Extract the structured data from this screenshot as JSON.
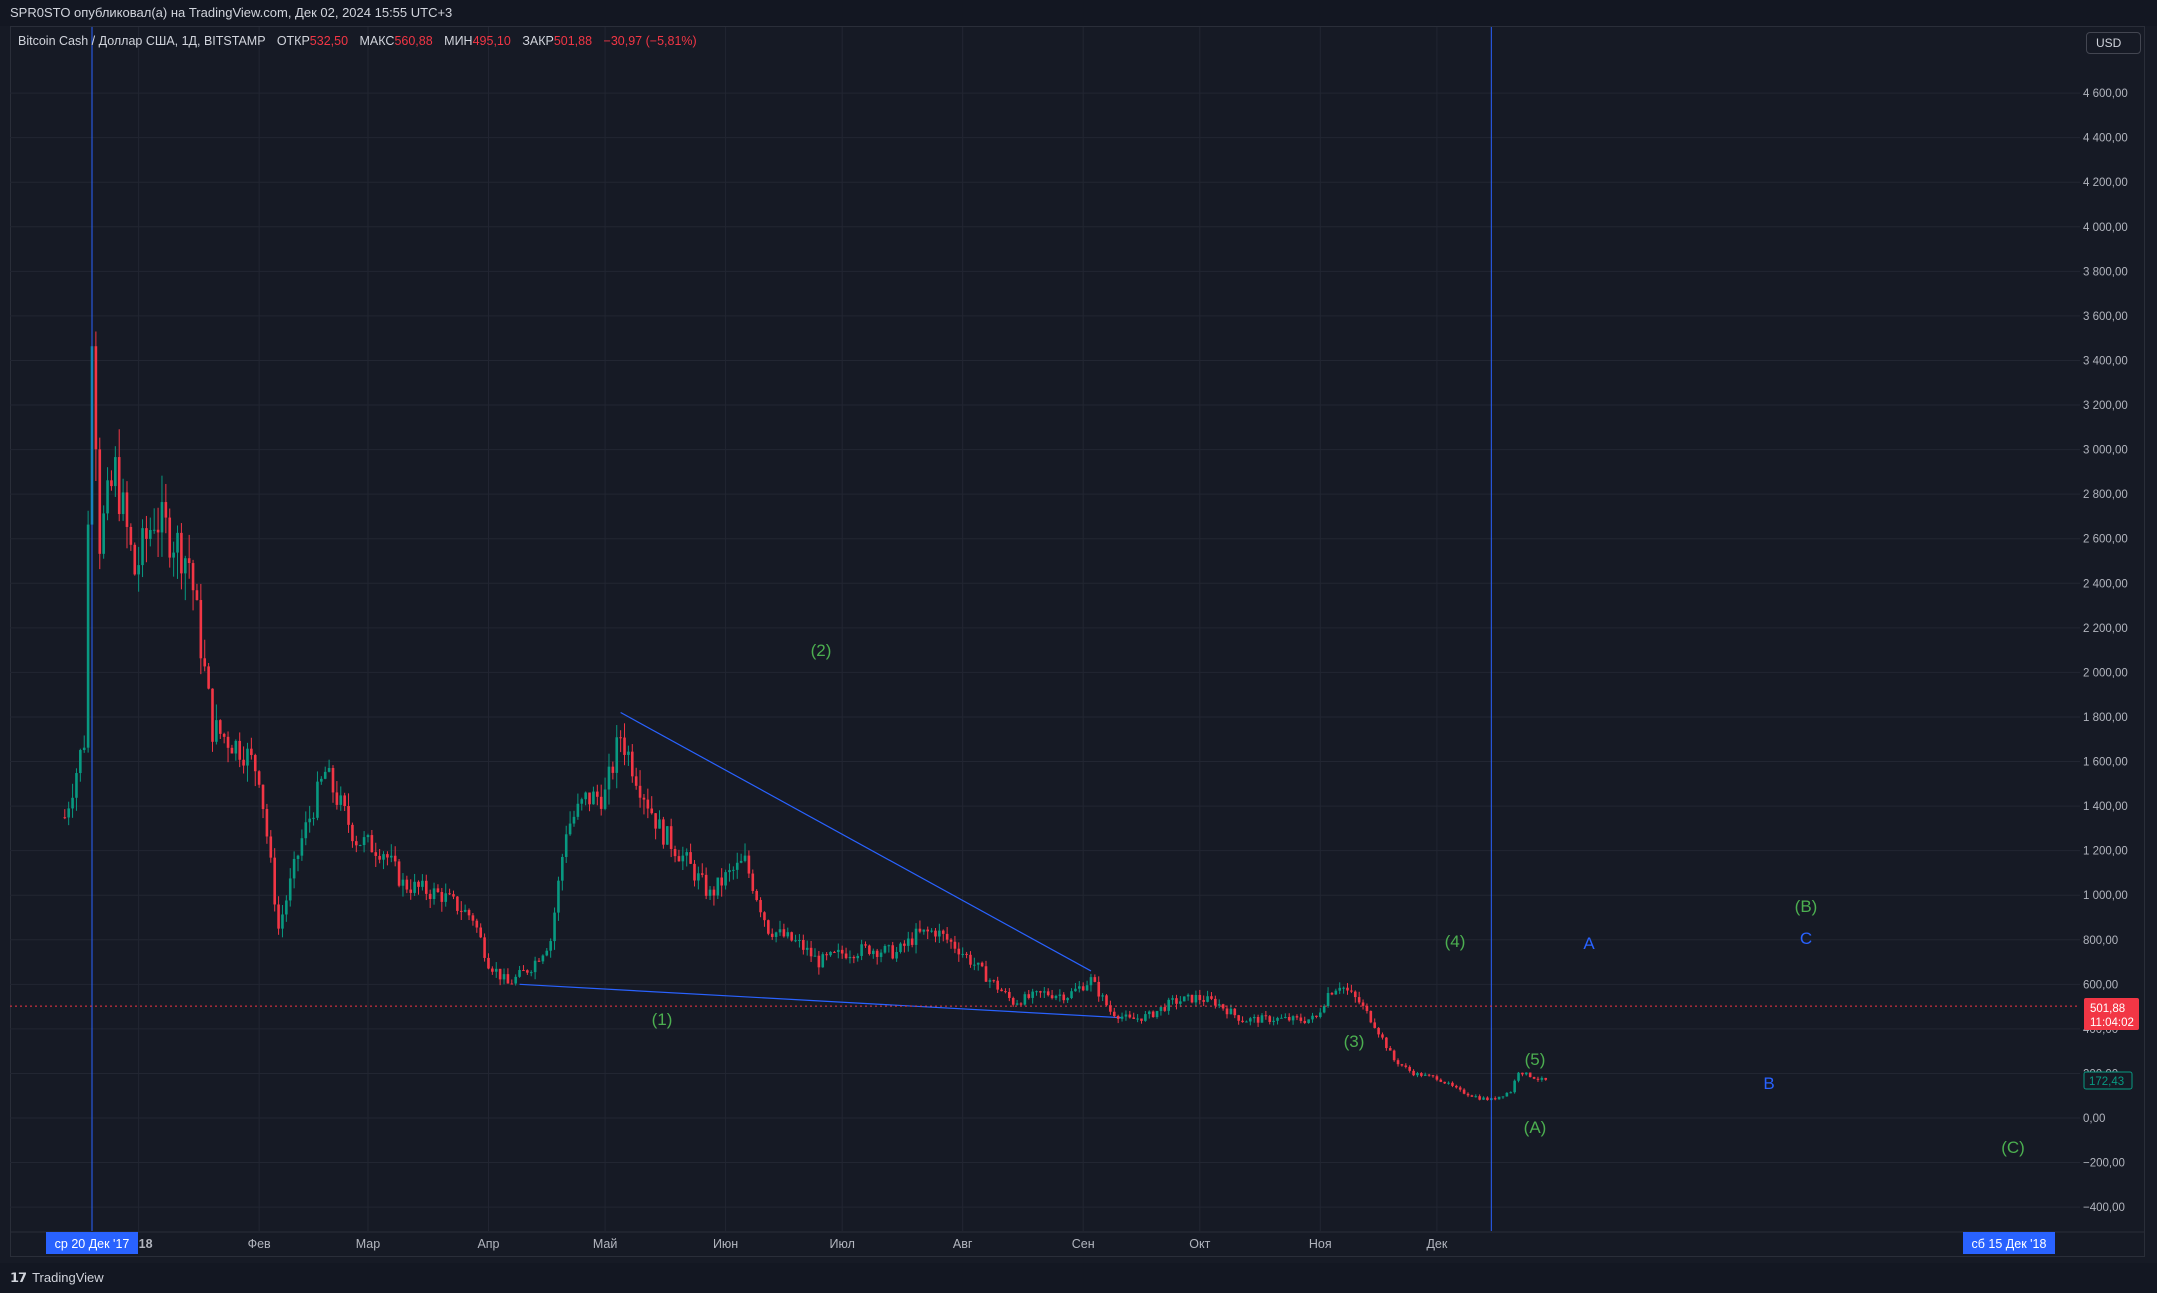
{
  "header": {
    "publisher_line": "SPR0STO опубликовал(а) на TradingView.com, Дек 02, 2024 15:55 UTC+3"
  },
  "legend": {
    "symbol": "Bitcoin Cash / Доллар США, 1Д, BITSTAMP",
    "open_label": "ОТКР",
    "open": "532,50",
    "high_label": "МАКС",
    "high": "560,88",
    "low_label": "МИН",
    "low": "495,10",
    "close_label": "ЗАКР",
    "close": "501,88",
    "change": "−30,97 (−5,81%)"
  },
  "currency_button": {
    "label": "USD"
  },
  "price_axis": {
    "ticks": [
      "4 600,00",
      "4 400,00",
      "4 200,00",
      "4 000,00",
      "3 800,00",
      "3 600,00",
      "3 400,00",
      "3 200,00",
      "3 000,00",
      "2 800,00",
      "2 600,00",
      "2 400,00",
      "2 200,00",
      "2 000,00",
      "1 800,00",
      "1 600,00",
      "1 400,00",
      "1 200,00",
      "1 000,00",
      "800,00",
      "600,00",
      "400,00",
      "200,00",
      "0,00",
      "−200,00",
      "−400,00"
    ],
    "last_price": "501,88",
    "countdown": "11:04:02",
    "indicator_value": "172,43"
  },
  "time_axis": {
    "ticks": [
      "2018",
      "Фев",
      "Мар",
      "Апр",
      "Май",
      "Июн",
      "Июл",
      "Авг",
      "Сен",
      "Окт",
      "Ноя",
      "Дек"
    ],
    "left_marker": "ср 20 Дек '17",
    "right_marker": "сб 15 Дек '18"
  },
  "wave_labels": {
    "w1": "(1)",
    "w2": "(2)",
    "w3": "(3)",
    "w4": "(4)",
    "w5": "(5)",
    "wA": "(A)",
    "wB": "(B)",
    "wC": "(C)",
    "a": "A",
    "b": "B",
    "c": "C"
  },
  "footer": {
    "brand": "TradingView"
  },
  "colors": {
    "background": "#161a25",
    "grid": "#222632",
    "up": "#089981",
    "down": "#f23645",
    "trendline": "#2962ff",
    "wave_green": "#4caf50",
    "wave_blue": "#2962ff"
  },
  "chart_data": {
    "type": "candlestick",
    "title": "Bitcoin Cash / Доллар США, 1Д, BITSTAMP",
    "ylim": [
      -480,
      4720
    ],
    "series": [
      {
        "name": "BCH/USD",
        "anchors": [
          [
            "2017-12-13",
            1350
          ],
          [
            "2017-12-18",
            1700
          ],
          [
            "2017-12-20",
            3600
          ],
          [
            "2017-12-22",
            2600
          ],
          [
            "2017-12-26",
            2900
          ],
          [
            "2017-12-31",
            2450
          ],
          [
            "2018-01-05",
            2700
          ],
          [
            "2018-01-10",
            2600
          ],
          [
            "2018-01-14",
            2500
          ],
          [
            "2018-01-20",
            1750
          ],
          [
            "2018-01-28",
            1650
          ],
          [
            "2018-02-01",
            1550
          ],
          [
            "2018-02-06",
            850
          ],
          [
            "2018-02-12",
            1250
          ],
          [
            "2018-02-18",
            1550
          ],
          [
            "2018-02-26",
            1250
          ],
          [
            "2018-03-05",
            1200
          ],
          [
            "2018-03-10",
            1050
          ],
          [
            "2018-03-20",
            1000
          ],
          [
            "2018-03-28",
            900
          ],
          [
            "2018-04-01",
            700
          ],
          [
            "2018-04-06",
            600
          ],
          [
            "2018-04-12",
            680
          ],
          [
            "2018-04-17",
            800
          ],
          [
            "2018-04-21",
            1300
          ],
          [
            "2018-04-26",
            1430
          ],
          [
            "2018-05-01",
            1450
          ],
          [
            "2018-05-05",
            1720
          ],
          [
            "2018-05-10",
            1500
          ],
          [
            "2018-05-15",
            1300
          ],
          [
            "2018-05-22",
            1150
          ],
          [
            "2018-05-28",
            1000
          ],
          [
            "2018-06-01",
            1080
          ],
          [
            "2018-06-06",
            1150
          ],
          [
            "2018-06-12",
            850
          ],
          [
            "2018-06-20",
            780
          ],
          [
            "2018-06-25",
            700
          ],
          [
            "2018-07-01",
            740
          ],
          [
            "2018-07-08",
            760
          ],
          [
            "2018-07-15",
            740
          ],
          [
            "2018-07-20",
            820
          ],
          [
            "2018-07-25",
            840
          ],
          [
            "2018-07-31",
            760
          ],
          [
            "2018-08-08",
            620
          ],
          [
            "2018-08-14",
            520
          ],
          [
            "2018-08-22",
            560
          ],
          [
            "2018-08-28",
            550
          ],
          [
            "2018-09-03",
            620
          ],
          [
            "2018-09-08",
            480
          ],
          [
            "2018-09-13",
            440
          ],
          [
            "2018-09-18",
            460
          ],
          [
            "2018-09-24",
            520
          ],
          [
            "2018-09-30",
            540
          ],
          [
            "2018-10-05",
            520
          ],
          [
            "2018-10-12",
            440
          ],
          [
            "2018-10-20",
            445
          ],
          [
            "2018-10-28",
            440
          ],
          [
            "2018-10-31",
            450
          ],
          [
            "2018-11-03",
            560
          ],
          [
            "2018-11-06",
            600
          ],
          [
            "2018-11-11",
            520
          ],
          [
            "2018-11-15",
            420
          ],
          [
            "2018-11-20",
            260
          ],
          [
            "2018-11-25",
            200
          ],
          [
            "2018-12-01",
            180
          ],
          [
            "2018-12-07",
            120
          ],
          [
            "2018-12-12",
            90
          ],
          [
            "2018-12-15",
            82
          ],
          [
            "2018-12-20",
            120
          ],
          [
            "2018-12-22",
            210
          ],
          [
            "2018-12-27",
            175
          ],
          [
            "2018-12-30",
            165
          ]
        ]
      }
    ],
    "trendlines": [
      {
        "from": [
          "2018-05-05",
          1820
        ],
        "to": [
          "2018-09-03",
          660
        ]
      },
      {
        "from": [
          "2018-04-09",
          600
        ],
        "to": [
          "2018-09-11",
          450
        ]
      }
    ],
    "vertical_markers": [
      "2017-12-20",
      "2018-12-15"
    ],
    "last_price_line": 501.88
  }
}
